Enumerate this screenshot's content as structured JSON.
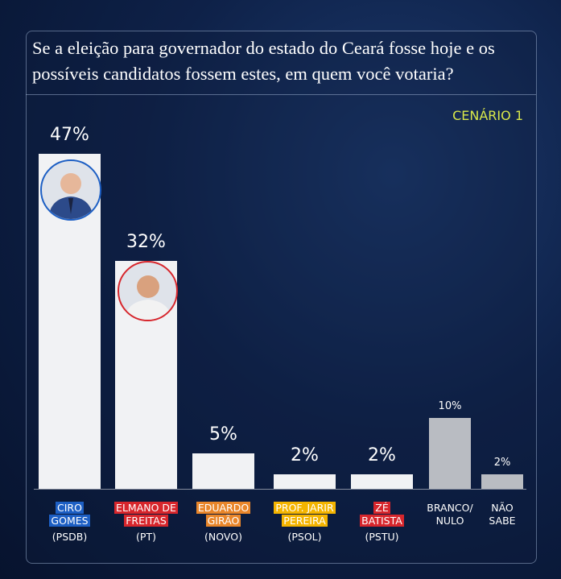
{
  "chart_data": {
    "type": "bar",
    "title": "Se a eleição para governador do estado do Ceará fosse hoje e os possíveis candidatos fossem estes, em quem você votaria?",
    "subtitle": "CENÁRIO 1",
    "categories": [
      "CIRO\nGOMES",
      "ELMANO DE\nFREITAS",
      "EDUARDO\nGIRÃO",
      "PROF. JARIR\nPEREIRA",
      "ZÉ\nBATISTA",
      "BRANCO/\nNULO",
      "NÃO\nSABE"
    ],
    "parties": [
      "(PSDB)",
      "(PT)",
      "(NOVO)",
      "(PSOL)",
      "(PSTU)",
      null,
      null
    ],
    "values": [
      47,
      32,
      5,
      2,
      2,
      10,
      2
    ],
    "value_labels": [
      "47%",
      "32%",
      "5%",
      "2%",
      "2%",
      "10%",
      "2%"
    ],
    "bar_colors": [
      "#f1f2f4",
      "#f1f2f4",
      "#f1f2f4",
      "#f1f2f4",
      "#f1f2f4",
      "#b9bcc2",
      "#b9bcc2"
    ],
    "label_colors": [
      "#1d5fc4",
      "#d7262c",
      "#e9862a",
      "#f4b400",
      "#d7262c",
      null,
      null
    ]
  }
}
